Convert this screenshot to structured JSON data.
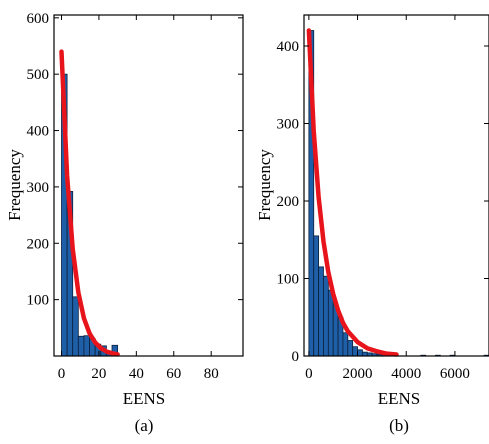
{
  "chart_data": [
    {
      "type": "bar",
      "caption": "(a)",
      "xlabel": "EENS",
      "ylabel": "Frequency",
      "xlim": [
        -4,
        97
      ],
      "ylim": [
        0,
        605
      ],
      "xticks": [
        0,
        20,
        40,
        60,
        80
      ],
      "yticks": [
        100,
        200,
        300,
        400,
        500,
        600
      ],
      "bin_width": 3,
      "bins": [
        {
          "x0": 0,
          "value": 500
        },
        {
          "x0": 3,
          "value": 292
        },
        {
          "x0": 6,
          "value": 105
        },
        {
          "x0": 9,
          "value": 35
        },
        {
          "x0": 12,
          "value": 36
        },
        {
          "x0": 15,
          "value": 31
        },
        {
          "x0": 18,
          "value": 21
        },
        {
          "x0": 21,
          "value": 18
        },
        {
          "x0": 24,
          "value": 7
        },
        {
          "x0": 27,
          "value": 19
        }
      ],
      "fit_curve": {
        "color": "#e8141b",
        "x": [
          0,
          3,
          6,
          9,
          12,
          15,
          18,
          21,
          24,
          27,
          30
        ],
        "y": [
          540,
          320,
          190,
          113,
          67,
          40,
          24,
          14,
          8,
          5,
          3
        ]
      }
    },
    {
      "type": "bar",
      "caption": "(b)",
      "xlabel": "EENS",
      "ylabel": "Frequency",
      "xlim": [
        -200,
        7400
      ],
      "ylim": [
        0,
        440
      ],
      "xticks": [
        0,
        2000,
        4000,
        6000
      ],
      "yticks": [
        0,
        100,
        200,
        300,
        400
      ],
      "bin_width": 200,
      "bins": [
        {
          "x0": 0,
          "value": 420
        },
        {
          "x0": 200,
          "value": 155
        },
        {
          "x0": 400,
          "value": 115
        },
        {
          "x0": 600,
          "value": 103
        },
        {
          "x0": 800,
          "value": 85
        },
        {
          "x0": 1000,
          "value": 67
        },
        {
          "x0": 1200,
          "value": 50
        },
        {
          "x0": 1400,
          "value": 30
        },
        {
          "x0": 1600,
          "value": 20
        },
        {
          "x0": 1800,
          "value": 12
        },
        {
          "x0": 2000,
          "value": 8
        },
        {
          "x0": 2200,
          "value": 5
        },
        {
          "x0": 2400,
          "value": 4
        },
        {
          "x0": 2600,
          "value": 3
        },
        {
          "x0": 2800,
          "value": 2
        },
        {
          "x0": 3000,
          "value": 2
        },
        {
          "x0": 3200,
          "value": 1
        },
        {
          "x0": 4600,
          "value": 1
        },
        {
          "x0": 5200,
          "value": 1
        },
        {
          "x0": 5800,
          "value": 1
        },
        {
          "x0": 7200,
          "value": 1
        }
      ],
      "fit_curve": {
        "color": "#e8141b",
        "x": [
          0,
          200,
          400,
          600,
          800,
          1000,
          1200,
          1400,
          1600,
          2000,
          2400,
          2800,
          3200,
          3600
        ],
        "y": [
          420,
          290,
          205,
          148,
          108,
          80,
          59,
          43,
          32,
          18,
          10,
          6,
          3,
          2
        ]
      }
    }
  ]
}
